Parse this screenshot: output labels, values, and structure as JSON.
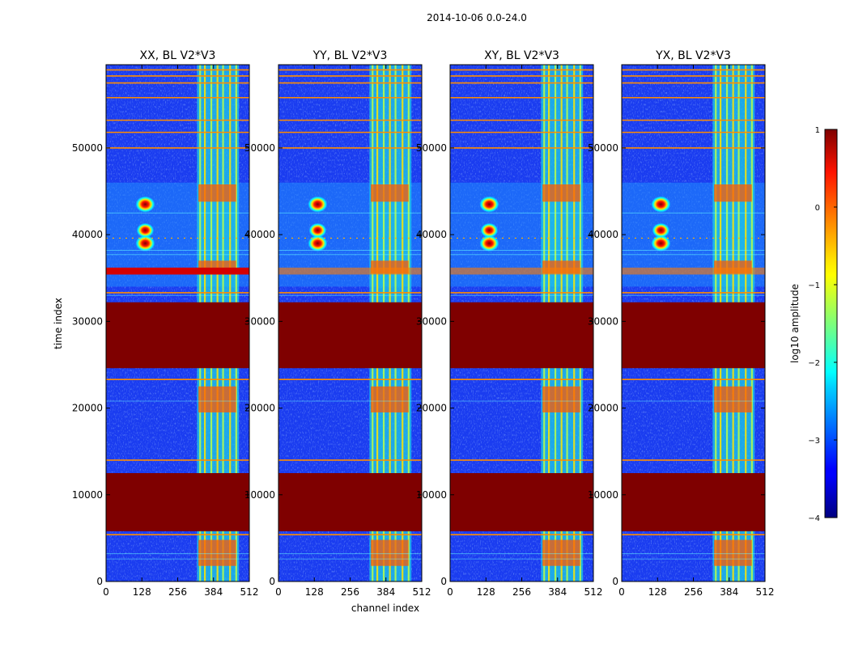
{
  "chart_data": {
    "type": "heatmap",
    "suptitle": "2014-10-06 0.0-24.0",
    "xlabel": "channel index",
    "ylabel": "time index",
    "x_range": [
      0,
      512
    ],
    "y_range": [
      0,
      59600
    ],
    "x_ticks": [
      0,
      128,
      256,
      384,
      512
    ],
    "x_tick_labels": [
      "0",
      "128",
      "256",
      "384",
      "512"
    ],
    "y_ticks": [
      0,
      10000,
      20000,
      30000,
      40000,
      50000
    ],
    "y_tick_labels": [
      "0",
      "10000",
      "20000",
      "30000",
      "40000",
      "50000"
    ],
    "panels": [
      {
        "title": "XX, BL V2*V3"
      },
      {
        "title": "YY, BL V2*V3"
      },
      {
        "title": "XY, BL V2*V3"
      },
      {
        "title": "YX, BL V2*V3"
      }
    ],
    "colorbar": {
      "label": "log10 amplitude",
      "range": [
        -4,
        1
      ],
      "colormap": "jet",
      "ticks": [
        1,
        0,
        -1,
        -2,
        -3,
        -4
      ],
      "tick_labels": [
        "1",
        "0",
        "−1",
        "−2",
        "−3",
        "−4"
      ]
    },
    "saturated_time_ranges": [
      [
        5800,
        12500
      ],
      [
        24600,
        32200
      ]
    ],
    "rfi_channel_range": [
      325,
      475
    ],
    "flag_line_times": [
      5400,
      14000,
      23300,
      33300,
      50000,
      51800,
      53200,
      55800,
      57500,
      58300,
      59000
    ]
  }
}
